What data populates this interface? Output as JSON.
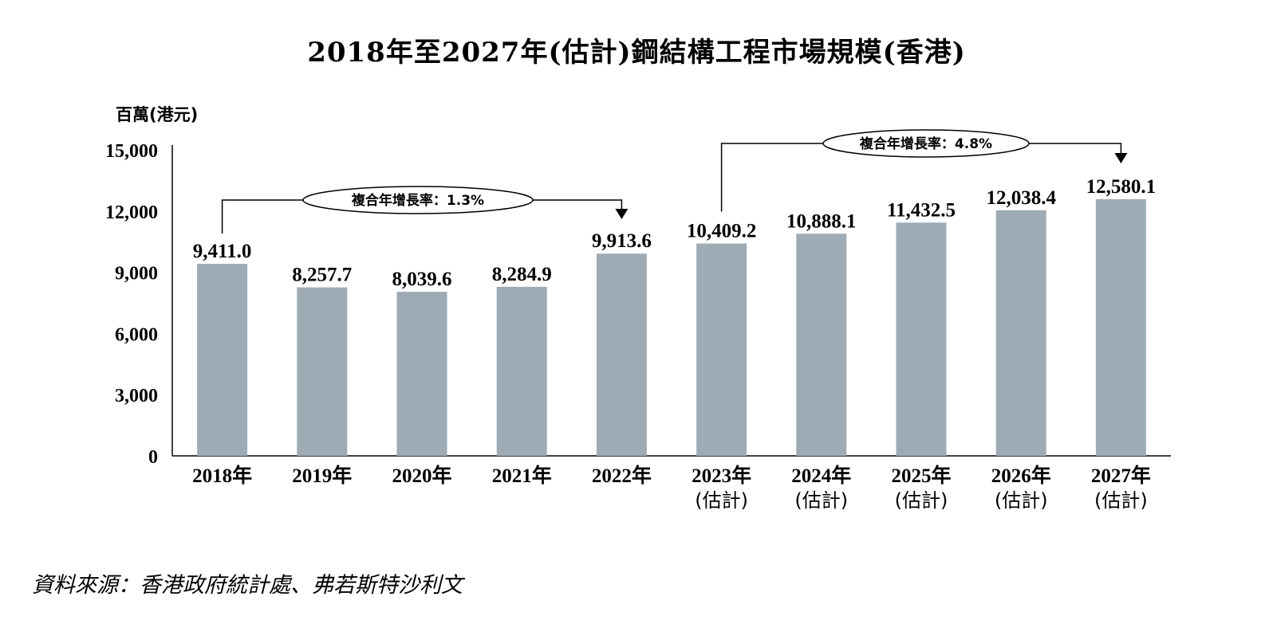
{
  "chart_data": {
    "type": "bar",
    "title": "2018年至2027年(估計)鋼結構工程市場規模(香港)",
    "ylabel": "百萬(港元)",
    "xlabel": "",
    "ylim": [
      0,
      15000
    ],
    "yticks": [
      "0",
      "3,000",
      "6,000",
      "9,000",
      "12,000",
      "15,000"
    ],
    "categories": [
      "2018年",
      "2019年",
      "2020年",
      "2021年",
      "2022年",
      "2023年",
      "2024年",
      "2025年",
      "2026年",
      "2027年"
    ],
    "category_sublabels": [
      "",
      "",
      "",
      "",
      "",
      "(估計)",
      "(估計)",
      "(估計)",
      "(估計)",
      "(估計)"
    ],
    "values": [
      9411.0,
      8257.7,
      8039.6,
      8284.9,
      9913.6,
      10409.2,
      10888.1,
      11432.5,
      12038.4,
      12580.1
    ],
    "value_labels": [
      "9,411.0",
      "8,257.7",
      "8,039.6",
      "8,284.9",
      "9,913.6",
      "10,409.2",
      "10,888.1",
      "11,432.5",
      "12,038.4",
      "12,580.1"
    ],
    "bar_color": "#9eabb5",
    "grid": false,
    "annotations": [
      {
        "text": "複合年增長率：1.3%",
        "from_index": 0,
        "to_index": 4
      },
      {
        "text": "複合年增長率：4.8%",
        "from_index": 5,
        "to_index": 9
      }
    ]
  },
  "source": "資料來源：香港政府統計處、弗若斯特沙利文"
}
